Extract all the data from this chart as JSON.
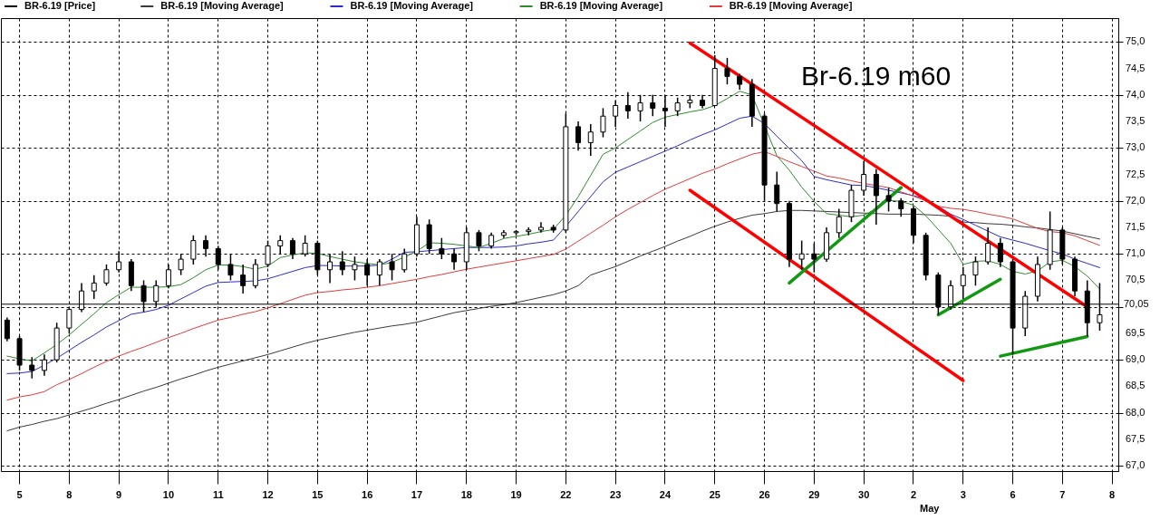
{
  "chart_data": {
    "type": "candlestick",
    "title": "Br-6.19 m60",
    "legend": "top left",
    "grid": true,
    "categories": [
      null,
      "5",
      null,
      null,
      null,
      "8",
      null,
      null,
      null,
      "9",
      null,
      null,
      null,
      "10",
      null,
      null,
      null,
      "11",
      null,
      null,
      null,
      "12",
      null,
      null,
      null,
      "15",
      null,
      null,
      null,
      "16",
      null,
      null,
      null,
      "17",
      null,
      null,
      null,
      "18",
      null,
      null,
      null,
      "19",
      null,
      null,
      null,
      "22",
      null,
      null,
      null,
      "23",
      null,
      null,
      null,
      "24",
      null,
      null,
      null,
      "25",
      null,
      null,
      null,
      "26",
      null,
      null,
      null,
      "29",
      null,
      null,
      null,
      "30",
      null,
      null,
      null,
      "2",
      null,
      null,
      null,
      "3",
      null,
      null,
      null,
      "6",
      null,
      null,
      null,
      "7",
      null,
      null,
      null,
      "8"
    ],
    "ylim": [
      66.9,
      75.45
    ],
    "yticks": [
      {
        "value": 67,
        "label": "67,0"
      },
      {
        "value": 67.5,
        "label": "67,5"
      },
      {
        "value": 68,
        "label": "68,0"
      },
      {
        "value": 68.5,
        "label": "68,5"
      },
      {
        "value": 69,
        "label": "69,0"
      },
      {
        "value": 69.5,
        "label": "69,5"
      },
      {
        "value": 70,
        "label": null
      },
      {
        "value": 70.5,
        "label": "70,5"
      },
      {
        "value": 71,
        "label": "71,0"
      },
      {
        "value": 71.5,
        "label": "71,5"
      },
      {
        "value": 72,
        "label": "72,0"
      },
      {
        "value": 72.5,
        "label": "72,5"
      },
      {
        "value": 73,
        "label": "73,0"
      },
      {
        "value": 73.5,
        "label": "73,5"
      },
      {
        "value": 74,
        "label": "74,0"
      },
      {
        "value": 74.5,
        "label": "74,5"
      },
      {
        "value": 75,
        "label": "75,0"
      }
    ],
    "ref_lines": [
      {
        "axis": "y",
        "value": 70.05,
        "label": "70,05",
        "color": "#000000"
      }
    ],
    "annotations": [
      "May"
    ],
    "series": [
      {
        "name": "BR-6.19 [Price]",
        "type": "candlestick",
        "color": "#000000",
        "ohlc": [
          [
            69.75,
            69.8,
            69.35,
            69.4
          ],
          [
            69.4,
            69.45,
            68.8,
            68.9
          ],
          [
            68.9,
            69.05,
            68.65,
            68.8
          ],
          [
            68.8,
            69.1,
            68.7,
            69.0
          ],
          [
            69.0,
            69.7,
            68.95,
            69.6
          ],
          [
            69.6,
            70.0,
            69.5,
            69.95
          ],
          [
            69.95,
            70.45,
            69.9,
            70.3
          ],
          [
            70.3,
            70.6,
            70.15,
            70.45
          ],
          [
            70.45,
            70.8,
            70.4,
            70.7
          ],
          [
            70.7,
            71.05,
            70.65,
            70.85
          ],
          [
            70.85,
            70.9,
            70.3,
            70.4
          ],
          [
            70.4,
            70.5,
            69.9,
            70.1
          ],
          [
            70.1,
            70.5,
            70.0,
            70.4
          ],
          [
            70.4,
            70.8,
            70.35,
            70.7
          ],
          [
            70.7,
            71.0,
            70.6,
            70.9
          ],
          [
            70.9,
            71.35,
            70.8,
            71.25
          ],
          [
            71.25,
            71.35,
            70.95,
            71.1
          ],
          [
            71.1,
            71.15,
            70.7,
            70.8
          ],
          [
            70.8,
            71.0,
            70.5,
            70.6
          ],
          [
            70.6,
            70.8,
            70.25,
            70.4
          ],
          [
            70.4,
            70.9,
            70.35,
            70.8
          ],
          [
            70.8,
            71.25,
            70.75,
            71.15
          ],
          [
            71.15,
            71.35,
            71.0,
            71.25
          ],
          [
            71.25,
            71.3,
            70.9,
            71.0
          ],
          [
            71.0,
            71.35,
            70.95,
            71.2
          ],
          [
            71.2,
            71.25,
            70.6,
            70.7
          ],
          [
            70.7,
            71.0,
            70.45,
            70.85
          ],
          [
            70.85,
            71.05,
            70.6,
            70.7
          ],
          [
            70.7,
            70.95,
            70.5,
            70.8
          ],
          [
            70.8,
            70.9,
            70.4,
            70.6
          ],
          [
            70.6,
            70.9,
            70.4,
            70.85
          ],
          [
            70.85,
            71.0,
            70.5,
            70.7
          ],
          [
            70.7,
            71.1,
            70.65,
            71.0
          ],
          [
            71.0,
            71.7,
            70.95,
            71.55
          ],
          [
            71.55,
            71.65,
            71.0,
            71.1
          ],
          [
            71.1,
            71.3,
            70.9,
            71.0
          ],
          [
            71.0,
            71.1,
            70.7,
            70.85
          ],
          [
            70.85,
            71.5,
            70.7,
            71.4
          ],
          [
            71.4,
            71.45,
            71.05,
            71.15
          ],
          [
            71.15,
            71.4,
            71.1,
            71.35
          ],
          [
            71.35,
            71.45,
            71.3,
            71.4
          ],
          [
            71.4,
            71.45,
            71.35,
            71.42
          ],
          [
            71.42,
            71.5,
            71.35,
            71.45
          ],
          [
            71.45,
            71.6,
            71.4,
            71.5
          ],
          [
            71.5,
            71.55,
            71.4,
            71.45
          ],
          [
            71.45,
            73.65,
            71.4,
            73.4
          ],
          [
            73.4,
            73.5,
            72.95,
            73.1
          ],
          [
            73.1,
            73.45,
            72.85,
            73.3
          ],
          [
            73.3,
            73.75,
            73.2,
            73.6
          ],
          [
            73.6,
            73.9,
            73.4,
            73.8
          ],
          [
            73.8,
            74.05,
            73.55,
            73.7
          ],
          [
            73.7,
            74.0,
            73.5,
            73.85
          ],
          [
            73.85,
            74.0,
            73.6,
            73.75
          ],
          [
            73.75,
            74.0,
            73.4,
            73.7
          ],
          [
            73.7,
            73.95,
            73.6,
            73.85
          ],
          [
            73.85,
            74.0,
            73.75,
            73.9
          ],
          [
            73.9,
            74.0,
            73.75,
            73.8
          ],
          [
            73.8,
            74.75,
            73.8,
            74.5
          ],
          [
            74.5,
            74.7,
            74.2,
            74.35
          ],
          [
            74.35,
            74.4,
            74.1,
            74.2
          ],
          [
            74.2,
            74.3,
            73.4,
            73.6
          ],
          [
            73.6,
            73.65,
            72.0,
            72.3
          ],
          [
            72.3,
            72.55,
            71.8,
            71.95
          ],
          [
            71.95,
            72.0,
            70.75,
            70.9
          ],
          [
            70.9,
            71.25,
            70.7,
            71.0
          ],
          [
            71.0,
            71.2,
            70.65,
            70.9
          ],
          [
            70.9,
            71.5,
            70.85,
            71.4
          ],
          [
            71.4,
            71.85,
            71.3,
            71.7
          ],
          [
            71.7,
            72.3,
            71.6,
            72.2
          ],
          [
            72.2,
            72.75,
            72.1,
            72.5
          ],
          [
            72.5,
            72.6,
            71.55,
            72.1
          ],
          [
            72.1,
            72.25,
            71.8,
            72.0
          ],
          [
            72.0,
            72.05,
            71.7,
            71.85
          ],
          [
            71.85,
            71.9,
            71.2,
            71.35
          ],
          [
            71.35,
            71.4,
            70.5,
            70.6
          ],
          [
            70.6,
            70.65,
            69.85,
            70.0
          ],
          [
            70.0,
            70.5,
            69.95,
            70.4
          ],
          [
            70.4,
            70.75,
            70.15,
            70.6
          ],
          [
            70.6,
            70.95,
            70.4,
            70.85
          ],
          [
            70.85,
            71.5,
            70.8,
            71.2
          ],
          [
            71.2,
            71.3,
            70.75,
            70.85
          ],
          [
            70.85,
            70.9,
            69.1,
            69.6
          ],
          [
            69.6,
            70.3,
            69.45,
            70.2
          ],
          [
            70.2,
            70.95,
            70.1,
            70.8
          ],
          [
            70.8,
            71.8,
            70.7,
            71.45
          ],
          [
            71.45,
            71.5,
            70.8,
            70.9
          ],
          [
            70.9,
            70.95,
            70.2,
            70.3
          ],
          [
            70.3,
            70.5,
            69.45,
            69.7
          ],
          [
            69.7,
            70.45,
            69.55,
            69.85
          ],
          null
        ]
      },
      {
        "name": "BR-6.19 [Moving Average]",
        "type": "line",
        "color": "#3a3a3a",
        "values": [
          67.66,
          67.73,
          67.78,
          67.84,
          67.89,
          67.96,
          68.03,
          68.1,
          68.18,
          68.25,
          68.33,
          68.41,
          68.48,
          68.56,
          68.64,
          68.71,
          68.79,
          68.86,
          68.92,
          68.98,
          69.04,
          69.1,
          69.17,
          69.24,
          69.31,
          69.37,
          69.42,
          69.47,
          69.52,
          69.56,
          69.6,
          69.64,
          69.67,
          69.71,
          69.77,
          69.83,
          69.89,
          69.93,
          69.97,
          70.01,
          70.04,
          70.08,
          70.13,
          70.18,
          70.23,
          70.3,
          70.4,
          70.6,
          70.68,
          70.76,
          70.86,
          70.96,
          71.05,
          71.14,
          71.24,
          71.33,
          71.43,
          71.52,
          71.6,
          71.67,
          71.73,
          71.76,
          71.8,
          71.82,
          71.82,
          71.81,
          71.8,
          71.79,
          71.78,
          71.77,
          71.76,
          71.75,
          71.75,
          71.75,
          71.74,
          71.73,
          71.71,
          71.6,
          71.59,
          71.57,
          71.56,
          71.54,
          71.51,
          71.49,
          71.46,
          71.43,
          71.38,
          71.33,
          71.28,
          null
        ]
      },
      {
        "name": "BR-6.19 [Moving Average]",
        "type": "line",
        "color": "#2b2bd0",
        "values": [
          68.74,
          68.75,
          68.78,
          68.9,
          69.03,
          69.18,
          69.33,
          69.47,
          69.62,
          69.74,
          69.86,
          69.9,
          69.95,
          70.03,
          70.15,
          70.27,
          70.39,
          70.46,
          70.47,
          70.48,
          70.49,
          70.53,
          70.6,
          70.67,
          70.74,
          70.78,
          70.78,
          70.77,
          70.77,
          70.77,
          70.79,
          70.9,
          71.03,
          71.04,
          71.06,
          71.08,
          71.1,
          71.12,
          71.12,
          71.12,
          71.13,
          71.15,
          71.19,
          71.22,
          71.26,
          71.52,
          71.8,
          72.08,
          72.36,
          72.54,
          72.64,
          72.74,
          72.84,
          72.94,
          73.04,
          73.15,
          73.25,
          73.34,
          73.45,
          73.56,
          73.6,
          73.46,
          73.22,
          72.99,
          72.76,
          72.46,
          72.4,
          72.35,
          72.3,
          72.29,
          72.25,
          72.2,
          72.15,
          72.1,
          72.03,
          71.9,
          71.75,
          71.65,
          71.54,
          71.43,
          71.32,
          71.26,
          71.2,
          71.13,
          71.06,
          71.0,
          70.9,
          70.82,
          70.74,
          null
        ]
      },
      {
        "name": "BR-6.19 [Moving Average]",
        "type": "line",
        "color": "#2e8b2e",
        "values": [
          69.07,
          69.02,
          68.98,
          69.13,
          69.29,
          69.47,
          69.67,
          69.87,
          70.08,
          70.23,
          70.37,
          70.37,
          70.37,
          70.38,
          70.42,
          70.55,
          70.7,
          70.79,
          70.79,
          70.76,
          70.71,
          70.77,
          70.93,
          70.98,
          71.02,
          71.01,
          70.95,
          70.9,
          70.85,
          70.82,
          70.79,
          70.84,
          70.94,
          71.05,
          71.21,
          71.2,
          71.18,
          71.15,
          71.12,
          71.2,
          71.29,
          71.33,
          71.37,
          71.42,
          71.46,
          71.73,
          72.08,
          72.48,
          72.88,
          73.0,
          73.16,
          73.32,
          73.48,
          73.58,
          73.63,
          73.68,
          73.72,
          73.8,
          73.93,
          74.07,
          74.0,
          null,
          72.85,
          72.58,
          72.26,
          71.99,
          71.76,
          71.73,
          71.7,
          71.73,
          71.85,
          72.01,
          71.99,
          71.92,
          71.72,
          71.46,
          71.2,
          70.8,
          70.86,
          70.87,
          70.8,
          70.67,
          70.62,
          70.68,
          70.85,
          70.88,
          70.76,
          70.58,
          70.34,
          null
        ]
      },
      {
        "name": "BR-6.19 [Moving Average]",
        "type": "line",
        "color": "#e03c3c",
        "values": [
          68.24,
          68.3,
          68.34,
          68.4,
          68.53,
          68.63,
          68.74,
          68.86,
          68.97,
          69.07,
          69.16,
          69.24,
          69.33,
          69.42,
          69.5,
          69.59,
          69.67,
          69.75,
          69.8,
          69.86,
          69.91,
          69.98,
          70.06,
          70.14,
          70.22,
          70.27,
          70.29,
          70.32,
          70.34,
          70.37,
          70.4,
          70.44,
          70.48,
          70.52,
          70.57,
          70.61,
          70.66,
          70.71,
          70.75,
          70.79,
          70.83,
          70.87,
          70.91,
          70.95,
          70.99,
          71.09,
          71.24,
          71.39,
          71.54,
          71.7,
          71.84,
          71.97,
          72.1,
          72.22,
          72.32,
          72.42,
          72.52,
          72.6,
          72.7,
          72.79,
          72.88,
          72.93,
          72.84,
          72.74,
          72.65,
          72.56,
          72.47,
          72.43,
          72.38,
          72.33,
          72.29,
          72.25,
          72.17,
          72.09,
          72.0,
          71.9,
          71.86,
          71.84,
          71.8,
          71.75,
          71.71,
          71.66,
          71.57,
          71.48,
          71.42,
          71.4,
          71.34,
          71.25,
          71.16,
          null
        ]
      },
      {
        "type": "line",
        "color": "#ff0000",
        "values": [
          null,
          null,
          null,
          null,
          null,
          null,
          null,
          null,
          null,
          null,
          null,
          null,
          null,
          null,
          null,
          null,
          null,
          null,
          null,
          null,
          null,
          null,
          null,
          null,
          null,
          null,
          null,
          null,
          null,
          null,
          null,
          null,
          null,
          null,
          null,
          null,
          null,
          null,
          null,
          null,
          null,
          null,
          null,
          null,
          null,
          null,
          null,
          null,
          null,
          null,
          null,
          null,
          null,
          null,
          null,
          74.98,
          null,
          null,
          null,
          null,
          null,
          null,
          null,
          null,
          null,
          null,
          null,
          null,
          null,
          null,
          null,
          null,
          null,
          null,
          null,
          null,
          null,
          null,
          null,
          null,
          null,
          null,
          null,
          null,
          null,
          null,
          null,
          70.0,
          null,
          null
        ]
      },
      {
        "type": "line",
        "color": "#ff0000",
        "values": [
          null,
          null,
          null,
          null,
          null,
          null,
          null,
          null,
          null,
          null,
          null,
          null,
          null,
          null,
          null,
          null,
          null,
          null,
          null,
          null,
          null,
          null,
          null,
          null,
          null,
          null,
          null,
          null,
          null,
          null,
          null,
          null,
          null,
          null,
          null,
          null,
          null,
          null,
          null,
          null,
          null,
          null,
          null,
          null,
          null,
          null,
          null,
          null,
          null,
          null,
          null,
          null,
          null,
          null,
          null,
          72.2,
          null,
          null,
          null,
          null,
          null,
          null,
          null,
          null,
          null,
          null,
          null,
          null,
          null,
          null,
          null,
          null,
          null,
          null,
          null,
          null,
          null,
          68.61,
          null,
          null,
          null,
          null,
          null,
          null,
          null,
          null,
          null,
          null,
          null,
          null
        ]
      },
      {
        "type": "line",
        "color": "#119911",
        "values": [
          null,
          null,
          null,
          null,
          null,
          null,
          null,
          null,
          null,
          null,
          null,
          null,
          null,
          null,
          null,
          null,
          null,
          null,
          null,
          null,
          null,
          null,
          null,
          null,
          null,
          null,
          null,
          null,
          null,
          null,
          null,
          null,
          null,
          null,
          null,
          null,
          null,
          null,
          null,
          null,
          null,
          null,
          null,
          null,
          null,
          null,
          null,
          null,
          null,
          null,
          null,
          null,
          null,
          null,
          null,
          null,
          null,
          null,
          null,
          null,
          null,
          null,
          null,
          70.45,
          null,
          null,
          null,
          null,
          null,
          null,
          null,
          null,
          72.25,
          null,
          null,
          null,
          null,
          null,
          null,
          null,
          null,
          null,
          null,
          null,
          null,
          null,
          null,
          null,
          null,
          null
        ]
      },
      {
        "type": "line",
        "color": "#119911",
        "values": [
          null,
          null,
          null,
          null,
          null,
          null,
          null,
          null,
          null,
          null,
          null,
          null,
          null,
          null,
          null,
          null,
          null,
          null,
          null,
          null,
          null,
          null,
          null,
          null,
          null,
          null,
          null,
          null,
          null,
          null,
          null,
          null,
          null,
          null,
          null,
          null,
          null,
          null,
          null,
          null,
          null,
          null,
          null,
          null,
          null,
          null,
          null,
          null,
          null,
          null,
          null,
          null,
          null,
          null,
          null,
          null,
          null,
          null,
          null,
          null,
          null,
          null,
          null,
          null,
          null,
          null,
          null,
          null,
          null,
          null,
          null,
          null,
          null,
          null,
          null,
          69.85,
          null,
          null,
          null,
          null,
          70.52,
          null,
          null,
          null,
          null,
          null,
          null,
          null,
          null,
          null
        ]
      },
      {
        "type": "line",
        "color": "#119911",
        "values": [
          null,
          null,
          null,
          null,
          null,
          null,
          null,
          null,
          null,
          null,
          null,
          null,
          null,
          null,
          null,
          null,
          null,
          null,
          null,
          null,
          null,
          null,
          null,
          null,
          null,
          null,
          null,
          null,
          null,
          null,
          null,
          null,
          null,
          null,
          null,
          null,
          null,
          null,
          null,
          null,
          null,
          null,
          null,
          null,
          null,
          null,
          null,
          null,
          null,
          null,
          null,
          null,
          null,
          null,
          null,
          null,
          null,
          null,
          null,
          null,
          null,
          null,
          null,
          null,
          null,
          null,
          null,
          null,
          null,
          null,
          null,
          null,
          null,
          null,
          null,
          null,
          null,
          null,
          null,
          null,
          69.07,
          null,
          null,
          null,
          null,
          null,
          null,
          69.44,
          null,
          null
        ]
      }
    ]
  }
}
